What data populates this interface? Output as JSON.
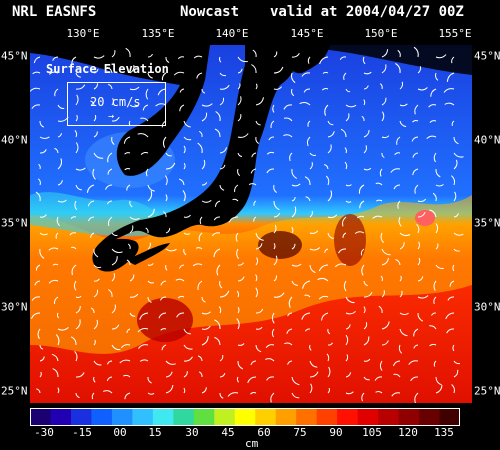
{
  "header": {
    "source": "NRL EASNFS",
    "product": "Nowcast",
    "valid": "valid at 2004/04/27 00Z"
  },
  "map": {
    "field_label": "Surface Elevation",
    "vector_scale": "20 cm/s",
    "vector_arrow": "→",
    "lon_labels": [
      "130°E",
      "135°E",
      "140°E",
      "145°E",
      "150°E",
      "155°E"
    ],
    "lat_labels": [
      "45°N",
      "40°N",
      "35°N",
      "30°N",
      "25°N"
    ]
  },
  "colorbar": {
    "ticks": [
      "-30",
      "-15",
      "00",
      "15",
      "30",
      "45",
      "60",
      "75",
      "90",
      "105",
      "120",
      "135"
    ],
    "unit": "cm",
    "colors": [
      "#1a0070",
      "#2000b0",
      "#1a30e0",
      "#1060ff",
      "#2090ff",
      "#30c0ff",
      "#40e8f0",
      "#30d8a0",
      "#60e040",
      "#c0f020",
      "#ffff00",
      "#ffd000",
      "#ffa000",
      "#ff7000",
      "#ff4000",
      "#ff1000",
      "#e00000",
      "#b80000",
      "#900000",
      "#680000",
      "#400000"
    ]
  }
}
